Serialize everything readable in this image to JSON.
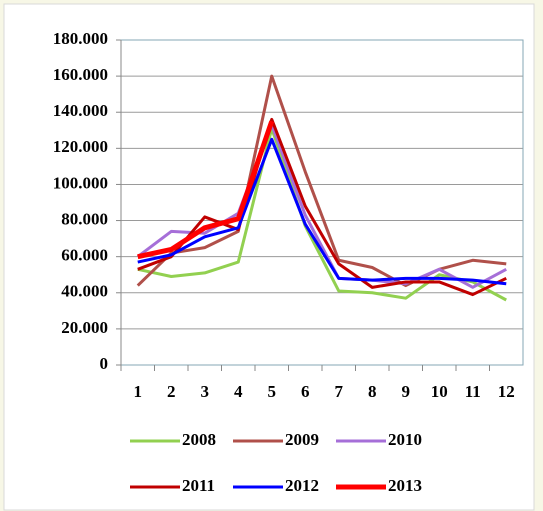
{
  "chart_data": {
    "type": "line",
    "categories": [
      "1",
      "2",
      "3",
      "4",
      "5",
      "6",
      "7",
      "8",
      "9",
      "10",
      "11",
      "12"
    ],
    "ylim": [
      0,
      180000
    ],
    "yticks": [
      0,
      {
        "value": 20000,
        "label": "20.000"
      },
      {
        "value": 40000,
        "label": "40.000"
      },
      {
        "value": 60000,
        "label": "60.000"
      },
      {
        "value": 80000,
        "label": "80.000"
      },
      {
        "value": 100000,
        "label": "100.000"
      },
      {
        "value": 120000,
        "label": "120.000"
      },
      {
        "value": 140000,
        "label": "140.000"
      },
      {
        "value": 160000,
        "label": "160.000"
      },
      {
        "value": 180000,
        "label": "180.000"
      }
    ],
    "grid": true,
    "series": [
      {
        "name": "2008",
        "color": "#92d050",
        "values": [
          53000,
          49000,
          51000,
          57000,
          131000,
          77000,
          41000,
          40000,
          37000,
          50000,
          46000,
          36000
        ]
      },
      {
        "name": "2009",
        "color": "#b0504a",
        "values": [
          44000,
          62000,
          65000,
          74000,
          160000,
          107000,
          58000,
          54000,
          44000,
          53000,
          58000,
          56000
        ]
      },
      {
        "name": "2010",
        "color": "#a66fd8",
        "values": [
          60000,
          74000,
          73000,
          84000,
          133000,
          83000,
          48000,
          47000,
          45000,
          53000,
          43000,
          53000
        ]
      },
      {
        "name": "2011",
        "color": "#c00000",
        "values": [
          53000,
          60000,
          82000,
          75000,
          136000,
          88000,
          56000,
          43000,
          46000,
          46000,
          39000,
          48000
        ]
      },
      {
        "name": "2012",
        "color": "#0000ff",
        "values": [
          57000,
          61000,
          71000,
          76000,
          125000,
          78000,
          48000,
          47000,
          48000,
          48000,
          47000,
          45000
        ]
      },
      {
        "name": "2013",
        "color": "#ff0000",
        "values": [
          60000,
          64000,
          76000,
          81000,
          135000,
          null,
          null,
          null,
          null,
          null,
          null,
          null
        ]
      }
    ]
  }
}
